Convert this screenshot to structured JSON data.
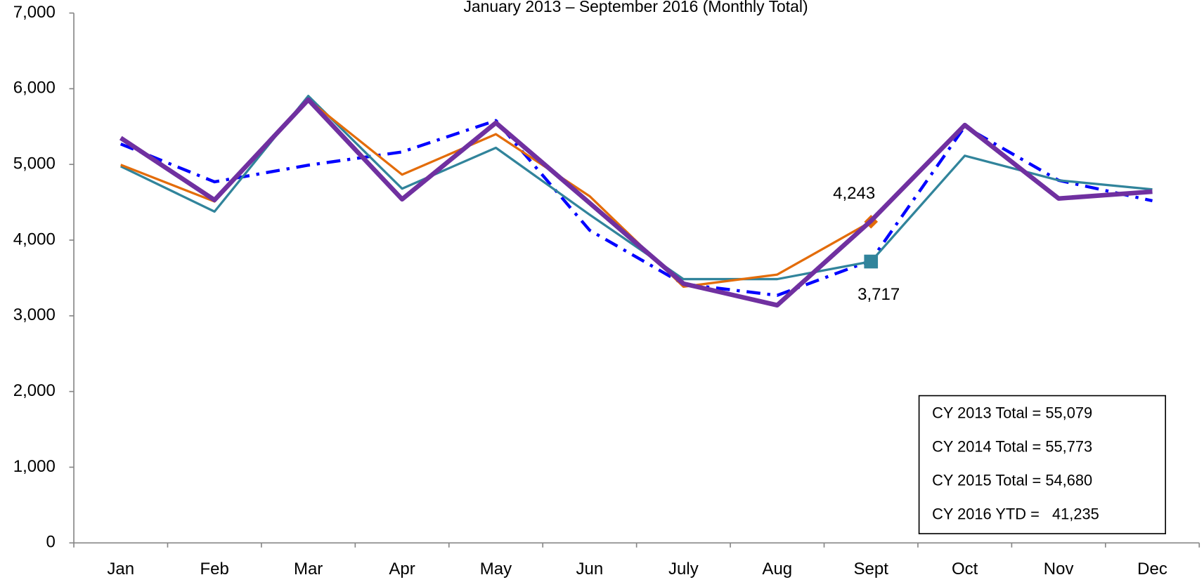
{
  "chart_data": {
    "type": "line",
    "title": "January 2013 – September 2016 (Monthly Total)",
    "categories": [
      "Jan",
      "Feb",
      "Mar",
      "Apr",
      "May",
      "Jun",
      "July",
      "Aug",
      "Sept",
      "Oct",
      "Nov",
      "Dec"
    ],
    "ylim": [
      0,
      7000
    ],
    "yticks": [
      0,
      {
        "value": 1000,
        "label": "1,000"
      },
      {
        "value": 2000,
        "label": "2,000"
      },
      {
        "value": 3000,
        "label": "3,000"
      },
      {
        "value": 4000,
        "label": "4,000"
      },
      {
        "value": 5000,
        "label": "5,000"
      },
      {
        "value": 6000,
        "label": "6,000"
      },
      {
        "value": 7000,
        "label": "7,000"
      }
    ],
    "series": [
      {
        "color": "#0000ff",
        "values": [
          5270,
          4770,
          4990,
          5165,
          5580,
          4130,
          3420,
          3270,
          3730,
          5500,
          4790,
          4520
        ]
      },
      {
        "color": "#31849b",
        "values": [
          4975,
          4377,
          5905,
          4680,
          5220,
          4336,
          3485,
          3485,
          3717,
          5115,
          4790,
          4670
        ],
        "value_labels": [
          null,
          null,
          null,
          null,
          null,
          null,
          null,
          null,
          "3,717",
          null,
          null,
          null
        ]
      },
      {
        "color": "#e36c09",
        "values": [
          4995,
          4510,
          5855,
          4865,
          5400,
          4580,
          3385,
          3545,
          4243,
          null,
          null,
          null
        ],
        "value_labels": [
          null,
          null,
          null,
          null,
          null,
          null,
          null,
          null,
          "4,243",
          null,
          null,
          null
        ]
      },
      {
        "color": "#7030a0",
        "values": [
          5350,
          4530,
          5855,
          4540,
          5550,
          4490,
          3425,
          3140,
          4255,
          5520,
          4550,
          4640
        ]
      }
    ],
    "notes": [
      "CY 2013 Total = 55,079",
      "CY 2014 Total = 55,773",
      "CY 2015 Total = 54,680",
      "CY 2016 YTD =   41,235"
    ]
  }
}
